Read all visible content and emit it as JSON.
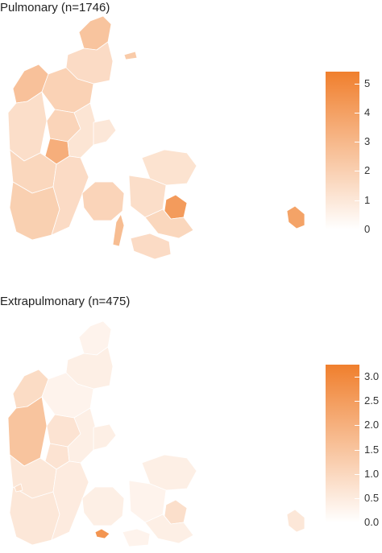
{
  "maps": [
    {
      "title": "Pulmonary (n=1746)",
      "legend": {
        "ticks": [
          "5",
          "4",
          "3",
          "2",
          "1",
          "0"
        ],
        "max": 5.4,
        "color_low": "#ffffff",
        "color_high": "#f07f2d"
      },
      "regions": {
        "north_jutland": 1.9,
        "thy": 2.6,
        "vendsyssel": 1.5,
        "skagen_tip": 2.5,
        "west_jutland": 1.4,
        "central_jutland_west": 1.7,
        "viborg": 1.8,
        "central_hotspot": 3.4,
        "aarhus": 1.1,
        "south_jutland_west": 2.0,
        "south_jutland_east": 1.5,
        "djursland": 1.0,
        "fyn": 1.8,
        "zealand_west": 1.4,
        "zealand_north": 1.2,
        "copenhagen": 4.2,
        "zealand_south": 1.7,
        "lolland_falster": 1.5,
        "samso": 2.2,
        "bornholm": 3.9,
        "langeland": 2.8
      }
    },
    {
      "title": "Extrapulmonary (n=475)",
      "legend": {
        "ticks": [
          "3.0",
          "2.5",
          "2.0",
          "1.5",
          "1.0",
          "0.5",
          "0.0"
        ],
        "max": 3.25,
        "color_low": "#ffffff",
        "color_high": "#f07f2d"
      },
      "regions": {
        "north_jutland": 0.3,
        "thy": 0.9,
        "vendsyssel": 0.4,
        "skagen_tip": 0.3,
        "west_jutland": 1.5,
        "central_jutland_west": 0.6,
        "viborg": 0.7,
        "central_hotspot": 0.7,
        "aarhus": 0.4,
        "south_jutland_west": 0.6,
        "south_jutland_east": 0.5,
        "djursland": 0.4,
        "fyn": 0.4,
        "zealand_west": 0.3,
        "zealand_north": 0.4,
        "copenhagen": 0.8,
        "zealand_south": 0.4,
        "lolland_falster": 0.3,
        "samso": 0.8,
        "bornholm": 0.6,
        "langeland": 2.7
      }
    }
  ]
}
